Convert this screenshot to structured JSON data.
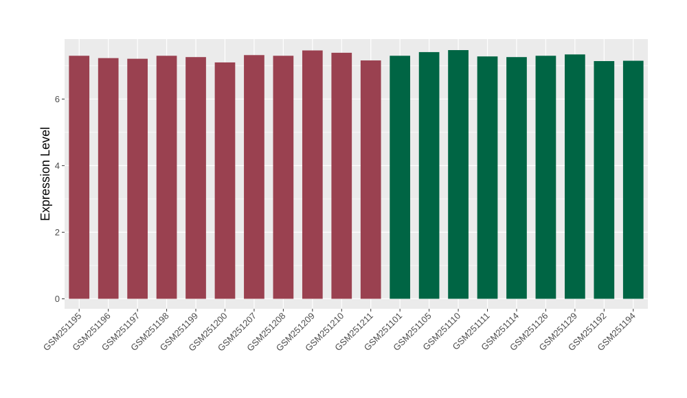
{
  "chart_data": {
    "type": "bar",
    "title": "",
    "xlabel": "",
    "ylabel": "Expression Level",
    "ylim": [
      -0.3,
      7.8
    ],
    "yticks": [
      0,
      2,
      4,
      6
    ],
    "grid": true,
    "categories": [
      "GSM251195",
      "GSM251196",
      "GSM251197",
      "GSM251198",
      "GSM251199",
      "GSM251200",
      "GSM251207",
      "GSM251208",
      "GSM251209",
      "GSM251210",
      "GSM251211",
      "GSM251101",
      "GSM251105",
      "GSM251110",
      "GSM251111",
      "GSM251114",
      "GSM251126",
      "GSM251129",
      "GSM251192",
      "GSM251194"
    ],
    "values": [
      7.3,
      7.23,
      7.21,
      7.3,
      7.26,
      7.1,
      7.32,
      7.3,
      7.46,
      7.39,
      7.16,
      7.3,
      7.41,
      7.47,
      7.28,
      7.26,
      7.3,
      7.34,
      7.14,
      7.15
    ],
    "groups": [
      0,
      0,
      0,
      0,
      0,
      0,
      0,
      0,
      0,
      0,
      0,
      1,
      1,
      1,
      1,
      1,
      1,
      1,
      1,
      1
    ],
    "colors": [
      "#9A4150",
      "#006544"
    ],
    "panel_background": "#EBEBEB",
    "grid_color": "#FFFFFF"
  }
}
